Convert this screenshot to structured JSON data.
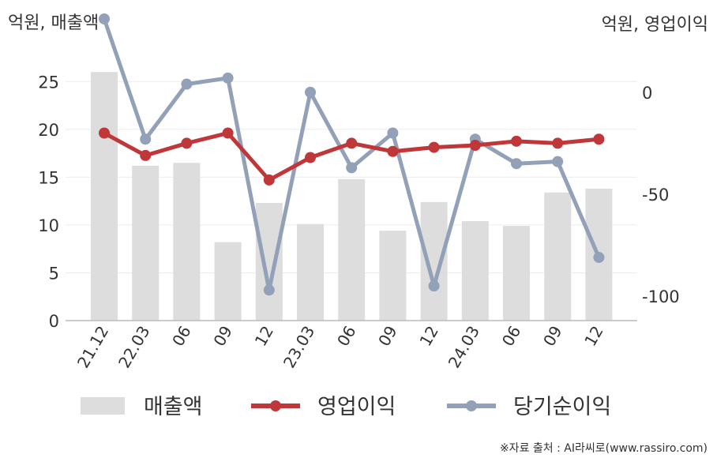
{
  "units": {
    "left": "억원, 매출액",
    "right": "억원, 영업이익"
  },
  "source": "※자료 출처 : AI라씨로(www.rassiro.com)",
  "chart_data": {
    "type": "bar+line",
    "categories": [
      "21.12",
      "22.03",
      "06",
      "09",
      "12",
      "23.03",
      "06",
      "09",
      "12",
      "24.03",
      "06",
      "09",
      "12"
    ],
    "left_axis": {
      "ylim": [
        0,
        27.5
      ],
      "ticks": [
        0,
        5,
        10,
        15,
        20,
        25
      ]
    },
    "right_axis": {
      "ylim": [
        -112,
        17
      ],
      "ticks": [
        -100,
        -50,
        0
      ]
    },
    "grid": true,
    "legend_position": "bottom",
    "series": [
      {
        "name": "매출액",
        "type": "bar",
        "axis": "left",
        "color": "#dddddd",
        "values": [
          26.0,
          16.2,
          16.5,
          8.2,
          12.3,
          10.1,
          14.8,
          9.4,
          12.4,
          10.4,
          9.9,
          13.4,
          13.8
        ]
      },
      {
        "name": "영업이익",
        "type": "line",
        "axis": "right",
        "color": "#c0373a",
        "values": [
          -20,
          -31,
          -25,
          -20,
          -43,
          -32,
          -25,
          -29,
          -27,
          -26,
          -24,
          -25,
          -23
        ]
      },
      {
        "name": "당기순이익",
        "type": "line",
        "axis": "right",
        "color": "#92a0b8",
        "values": [
          36,
          -23,
          4,
          7,
          -97,
          0,
          -37,
          -20,
          -95,
          -23,
          -35,
          -34,
          -81
        ]
      }
    ]
  }
}
